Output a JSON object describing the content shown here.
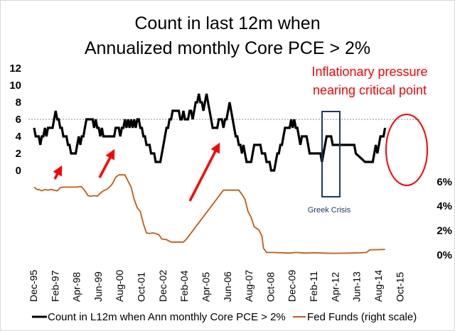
{
  "chart_data": {
    "type": "line",
    "title": [
      "Count in last 12m when",
      "Annualized monthly Core PCE > 2%"
    ],
    "xlabel": "",
    "ylabel_left": "",
    "ylabel_right": "",
    "x_start": "Dec-95",
    "x_end": "Jul-16",
    "x_tick_labels": [
      "Dec-95",
      "Feb-97",
      "Apr-98",
      "Jun-99",
      "Aug-00",
      "Oct-01",
      "Dec-02",
      "Feb-04",
      "Apr-05",
      "Jun-06",
      "Aug-07",
      "Oct-08",
      "Dec-09",
      "Feb-11",
      "Apr-12",
      "Jun-13",
      "Aug-14",
      "Oct-15"
    ],
    "y_left_ticks": [
      "0",
      "2",
      "4",
      "6",
      "8",
      "10",
      "12"
    ],
    "y_left_range": [
      0,
      12
    ],
    "y_right_ticks": [
      "0%",
      "2%",
      "4%",
      "6%"
    ],
    "y_right_range": [
      0,
      6
    ],
    "reference_line": {
      "axis": "left",
      "value": 6,
      "style": "dotted"
    },
    "grid": false,
    "legend_position": "bottom",
    "series": [
      {
        "name": "Count in L12m when Ann monthly Core PCE > 2%",
        "axis": "left",
        "color": "#000000",
        "points": [
          [
            0,
            5
          ],
          [
            1,
            4
          ],
          [
            3,
            4
          ],
          [
            4,
            3
          ],
          [
            5,
            4
          ],
          [
            6,
            4
          ],
          [
            7,
            5
          ],
          [
            8,
            4
          ],
          [
            9,
            5
          ],
          [
            11,
            5
          ],
          [
            12,
            5
          ],
          [
            13,
            6
          ],
          [
            14,
            7
          ],
          [
            15,
            6
          ],
          [
            16,
            6
          ],
          [
            17,
            5
          ],
          [
            18,
            5
          ],
          [
            19,
            4
          ],
          [
            21,
            4
          ],
          [
            22,
            3
          ],
          [
            23,
            3
          ],
          [
            24,
            2
          ],
          [
            27,
            2
          ],
          [
            28,
            3
          ],
          [
            29,
            4
          ],
          [
            30,
            3
          ],
          [
            31,
            4
          ],
          [
            32,
            4
          ],
          [
            33,
            5
          ],
          [
            34,
            6
          ],
          [
            38,
            6
          ],
          [
            39,
            5
          ],
          [
            40,
            6
          ],
          [
            41,
            5
          ],
          [
            42,
            5
          ],
          [
            43,
            4
          ],
          [
            44,
            5
          ],
          [
            45,
            4
          ],
          [
            52,
            4
          ],
          [
            53,
            5
          ],
          [
            55,
            5
          ],
          [
            56,
            4
          ],
          [
            57,
            5
          ],
          [
            58,
            5
          ],
          [
            59,
            6
          ],
          [
            60,
            5
          ],
          [
            61,
            6
          ],
          [
            62,
            5
          ],
          [
            63,
            6
          ],
          [
            64,
            5
          ],
          [
            65,
            6
          ],
          [
            66,
            5
          ],
          [
            67,
            6
          ],
          [
            68,
            6
          ],
          [
            69,
            5
          ],
          [
            70,
            5
          ],
          [
            71,
            4
          ],
          [
            72,
            4
          ],
          [
            73,
            3
          ],
          [
            75,
            3
          ],
          [
            76,
            2
          ],
          [
            78,
            2
          ],
          [
            79,
            1
          ],
          [
            82,
            1
          ],
          [
            83,
            2
          ],
          [
            84,
            3
          ],
          [
            85,
            4
          ],
          [
            86,
            5
          ],
          [
            87,
            5
          ],
          [
            88,
            6
          ],
          [
            89,
            6
          ],
          [
            90,
            7
          ],
          [
            94,
            7
          ],
          [
            95,
            6
          ],
          [
            96,
            6
          ],
          [
            97,
            7
          ],
          [
            98,
            6
          ],
          [
            100,
            6
          ],
          [
            101,
            7
          ],
          [
            102,
            7
          ],
          [
            103,
            6
          ],
          [
            104,
            7
          ],
          [
            105,
            8
          ],
          [
            106,
            8
          ],
          [
            107,
            9
          ],
          [
            108,
            8
          ],
          [
            109,
            8
          ],
          [
            110,
            7
          ],
          [
            111,
            8
          ],
          [
            112,
            9
          ],
          [
            113,
            8
          ],
          [
            114,
            7
          ],
          [
            115,
            6
          ],
          [
            116,
            5
          ],
          [
            119,
            5
          ],
          [
            120,
            6
          ],
          [
            122,
            6
          ],
          [
            123,
            5
          ],
          [
            124,
            6
          ],
          [
            125,
            6
          ],
          [
            126,
            7
          ],
          [
            127,
            8
          ],
          [
            128,
            7
          ],
          [
            129,
            6
          ],
          [
            130,
            5
          ],
          [
            131,
            4
          ],
          [
            132,
            4
          ],
          [
            133,
            3
          ],
          [
            134,
            3
          ],
          [
            135,
            2
          ],
          [
            136,
            3
          ],
          [
            137,
            2
          ],
          [
            138,
            1
          ],
          [
            141,
            1
          ],
          [
            142,
            2
          ],
          [
            143,
            3
          ],
          [
            144,
            3
          ],
          [
            147,
            3
          ],
          [
            148,
            2
          ],
          [
            150,
            2
          ],
          [
            151,
            1
          ],
          [
            153,
            1
          ],
          [
            154,
            0
          ],
          [
            156,
            0
          ],
          [
            157,
            1
          ],
          [
            158,
            2
          ],
          [
            159,
            2
          ],
          [
            160,
            3
          ],
          [
            161,
            3
          ],
          [
            162,
            4
          ],
          [
            163,
            5
          ],
          [
            164,
            5
          ],
          [
            166,
            5
          ],
          [
            167,
            6
          ],
          [
            168,
            5
          ],
          [
            169,
            6
          ],
          [
            170,
            5
          ],
          [
            171,
            5
          ],
          [
            172,
            4
          ],
          [
            173,
            3
          ],
          [
            174,
            4
          ],
          [
            177,
            4
          ],
          [
            178,
            3
          ],
          [
            179,
            2
          ],
          [
            183,
            2
          ],
          [
            184,
            2
          ],
          [
            186,
            2
          ],
          [
            187,
            1
          ],
          [
            188,
            2
          ],
          [
            189,
            3
          ],
          [
            190,
            4
          ],
          [
            193,
            4
          ],
          [
            194,
            3
          ],
          [
            200,
            3
          ],
          [
            201,
            3
          ],
          [
            208,
            3
          ],
          [
            209,
            2
          ],
          [
            215,
            1
          ],
          [
            220,
            1
          ],
          [
            221,
            2
          ],
          [
            222,
            3
          ],
          [
            223,
            2
          ],
          [
            224,
            3
          ],
          [
            225,
            4
          ],
          [
            227,
            4
          ],
          [
            228,
            5
          ]
        ]
      },
      {
        "name": "Fed Funds (right scale)",
        "axis": "right",
        "color": "#c55a11",
        "points": [
          [
            0,
            5.5
          ],
          [
            2,
            5.3
          ],
          [
            3,
            5.3
          ],
          [
            5,
            5.2
          ],
          [
            7,
            5.3
          ],
          [
            9,
            5.25
          ],
          [
            11,
            5.3
          ],
          [
            13,
            5.25
          ],
          [
            15,
            5.2
          ],
          [
            17,
            5.45
          ],
          [
            19,
            5.5
          ],
          [
            22,
            5.5
          ],
          [
            25,
            5.5
          ],
          [
            28,
            5.5
          ],
          [
            30,
            5.55
          ],
          [
            31,
            5.5
          ],
          [
            33,
            5.2
          ],
          [
            35,
            4.8
          ],
          [
            37,
            4.75
          ],
          [
            39,
            4.8
          ],
          [
            41,
            4.75
          ],
          [
            43,
            5.0
          ],
          [
            45,
            5.2
          ],
          [
            47,
            5.3
          ],
          [
            49,
            5.5
          ],
          [
            51,
            5.8
          ],
          [
            53,
            6.3
          ],
          [
            55,
            6.5
          ],
          [
            57,
            6.5
          ],
          [
            59,
            6.5
          ],
          [
            61,
            6.0
          ],
          [
            63,
            5.5
          ],
          [
            65,
            4.5
          ],
          [
            67,
            3.8
          ],
          [
            69,
            3.5
          ],
          [
            71,
            2.5
          ],
          [
            73,
            1.75
          ],
          [
            75,
            1.7
          ],
          [
            77,
            1.75
          ],
          [
            79,
            1.7
          ],
          [
            81,
            1.6
          ],
          [
            83,
            1.25
          ],
          [
            86,
            1.2
          ],
          [
            89,
            1.0
          ],
          [
            91,
            1.0
          ],
          [
            95,
            1.0
          ],
          [
            97,
            1.0
          ],
          [
            99,
            1.25
          ],
          [
            102,
            1.75
          ],
          [
            105,
            2.25
          ],
          [
            108,
            2.75
          ],
          [
            111,
            3.25
          ],
          [
            114,
            3.75
          ],
          [
            117,
            4.25
          ],
          [
            120,
            4.75
          ],
          [
            123,
            5.25
          ],
          [
            125,
            5.25
          ],
          [
            130,
            5.25
          ],
          [
            133,
            5.25
          ],
          [
            135,
            4.9
          ],
          [
            137,
            4.5
          ],
          [
            139,
            3.5
          ],
          [
            141,
            3.0
          ],
          [
            143,
            2.25
          ],
          [
            146,
            2.0
          ],
          [
            148,
            1.5
          ],
          [
            149,
            0.5
          ],
          [
            151,
            0.15
          ],
          [
            155,
            0.15
          ],
          [
            160,
            0.12
          ],
          [
            166,
            0.1
          ],
          [
            170,
            0.15
          ],
          [
            176,
            0.1
          ],
          [
            182,
            0.12
          ],
          [
            188,
            0.1
          ],
          [
            194,
            0.08
          ],
          [
            200,
            0.09
          ],
          [
            206,
            0.1
          ],
          [
            212,
            0.12
          ],
          [
            216,
            0.15
          ],
          [
            218,
            0.36
          ],
          [
            221,
            0.38
          ],
          [
            224,
            0.38
          ],
          [
            228,
            0.4
          ]
        ]
      }
    ],
    "x_unit": "months since Dec-95",
    "annotations": [
      {
        "text": "Inflationary pressure",
        "color": "#ff0000"
      },
      {
        "text": "nearing critical point",
        "color": "#ff0000"
      },
      {
        "text": "Greek Crisis",
        "color": "#1f3864"
      }
    ]
  },
  "legend": {
    "items": [
      {
        "label": "Count in L12m when Ann monthly Core PCE > 2%",
        "color": "#000000"
      },
      {
        "label": "Fed Funds (right scale)",
        "color": "#c55a11"
      }
    ]
  }
}
